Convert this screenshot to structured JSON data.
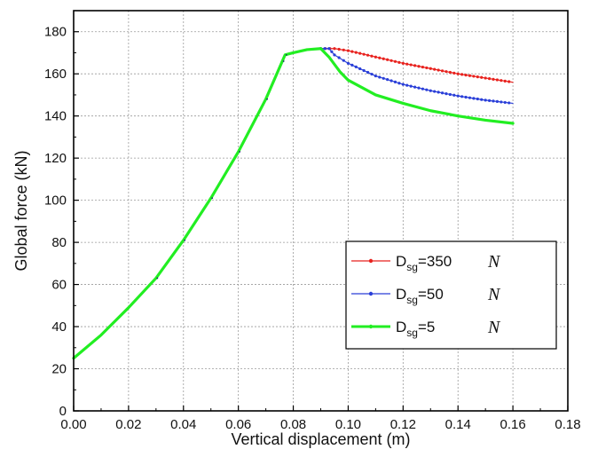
{
  "chart_data": {
    "type": "line",
    "title": "",
    "xlabel": "Vertical displacement (m)",
    "ylabel": "Global force (kN)",
    "xlim": [
      0.0,
      0.18
    ],
    "ylim": [
      0,
      190
    ],
    "x_ticks": [
      "0.00",
      "0.02",
      "0.04",
      "0.06",
      "0.08",
      "0.10",
      "0.12",
      "0.14",
      "0.16",
      "0.18"
    ],
    "y_ticks": [
      "0",
      "20",
      "40",
      "60",
      "80",
      "100",
      "120",
      "140",
      "160",
      "180"
    ],
    "grid": true,
    "legend_position": "lower-right",
    "series": [
      {
        "name": "D_sg=350 N",
        "label_main": "D",
        "label_sub": "sg",
        "label_rest": "=350",
        "label_unit": "N",
        "color": "#e8221e",
        "style": "dotted-line",
        "points": [
          [
            0.09,
            172
          ],
          [
            0.095,
            172
          ],
          [
            0.1,
            171
          ],
          [
            0.11,
            168
          ],
          [
            0.12,
            165
          ],
          [
            0.13,
            162.5
          ],
          [
            0.14,
            160
          ],
          [
            0.15,
            158
          ],
          [
            0.16,
            156
          ]
        ]
      },
      {
        "name": "D_sg=50 N",
        "label_main": "D",
        "label_sub": "sg",
        "label_rest": "=50",
        "label_unit": "N",
        "color": "#2a3fd8",
        "style": "dotted-line",
        "points": [
          [
            0.09,
            172
          ],
          [
            0.093,
            172
          ],
          [
            0.095,
            169
          ],
          [
            0.1,
            165
          ],
          [
            0.11,
            159
          ],
          [
            0.12,
            155
          ],
          [
            0.13,
            152
          ],
          [
            0.14,
            149.5
          ],
          [
            0.15,
            147.5
          ],
          [
            0.16,
            146
          ]
        ]
      },
      {
        "name": "D_sg=5 N",
        "label_main": "D",
        "label_sub": "sg",
        "label_rest": "=5",
        "label_unit": "N",
        "color": "#22ee22",
        "style": "thick-line",
        "points": [
          [
            0.0,
            25
          ],
          [
            0.01,
            36
          ],
          [
            0.02,
            49
          ],
          [
            0.03,
            63
          ],
          [
            0.04,
            81
          ],
          [
            0.05,
            101
          ],
          [
            0.06,
            123
          ],
          [
            0.07,
            148
          ],
          [
            0.076,
            166
          ],
          [
            0.077,
            169
          ],
          [
            0.08,
            170
          ],
          [
            0.085,
            171.5
          ],
          [
            0.09,
            172
          ],
          [
            0.093,
            168
          ],
          [
            0.097,
            161
          ],
          [
            0.1,
            157
          ],
          [
            0.11,
            150
          ],
          [
            0.12,
            146
          ],
          [
            0.13,
            142.5
          ],
          [
            0.14,
            140
          ],
          [
            0.15,
            138
          ],
          [
            0.16,
            136.5
          ]
        ]
      }
    ]
  }
}
